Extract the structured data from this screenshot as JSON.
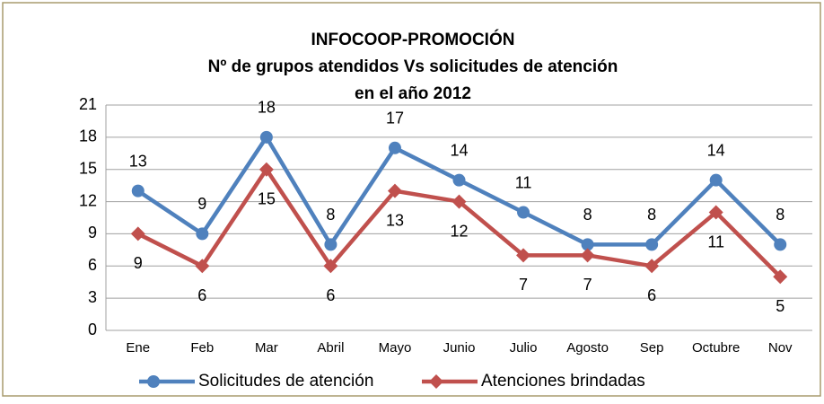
{
  "chart_data": {
    "type": "line",
    "title": [
      "INFOCOOP-PROMOCIÓN",
      "Nº de grupos atendidos Vs solicitudes de atención",
      "en el año 2012"
    ],
    "categories": [
      "Ene",
      "Feb",
      "Mar",
      "Abril",
      "Mayo",
      "Junio",
      "Julio",
      "Agosto",
      "Sep",
      "Octubre",
      "Nov"
    ],
    "series": [
      {
        "name": "Solicitudes de atención",
        "color": "#4f81bd",
        "marker": "circle",
        "values": [
          13,
          9,
          18,
          8,
          17,
          14,
          11,
          8,
          8,
          14,
          8
        ]
      },
      {
        "name": "Atenciones brindadas",
        "color": "#c0504d",
        "marker": "diamond",
        "values": [
          9,
          6,
          15,
          6,
          13,
          12,
          7,
          7,
          6,
          11,
          5
        ]
      }
    ],
    "ylim": [
      0,
      21
    ],
    "yticks": [
      0,
      3,
      6,
      9,
      12,
      15,
      18,
      21
    ],
    "grid": true,
    "legend": "bottom"
  }
}
